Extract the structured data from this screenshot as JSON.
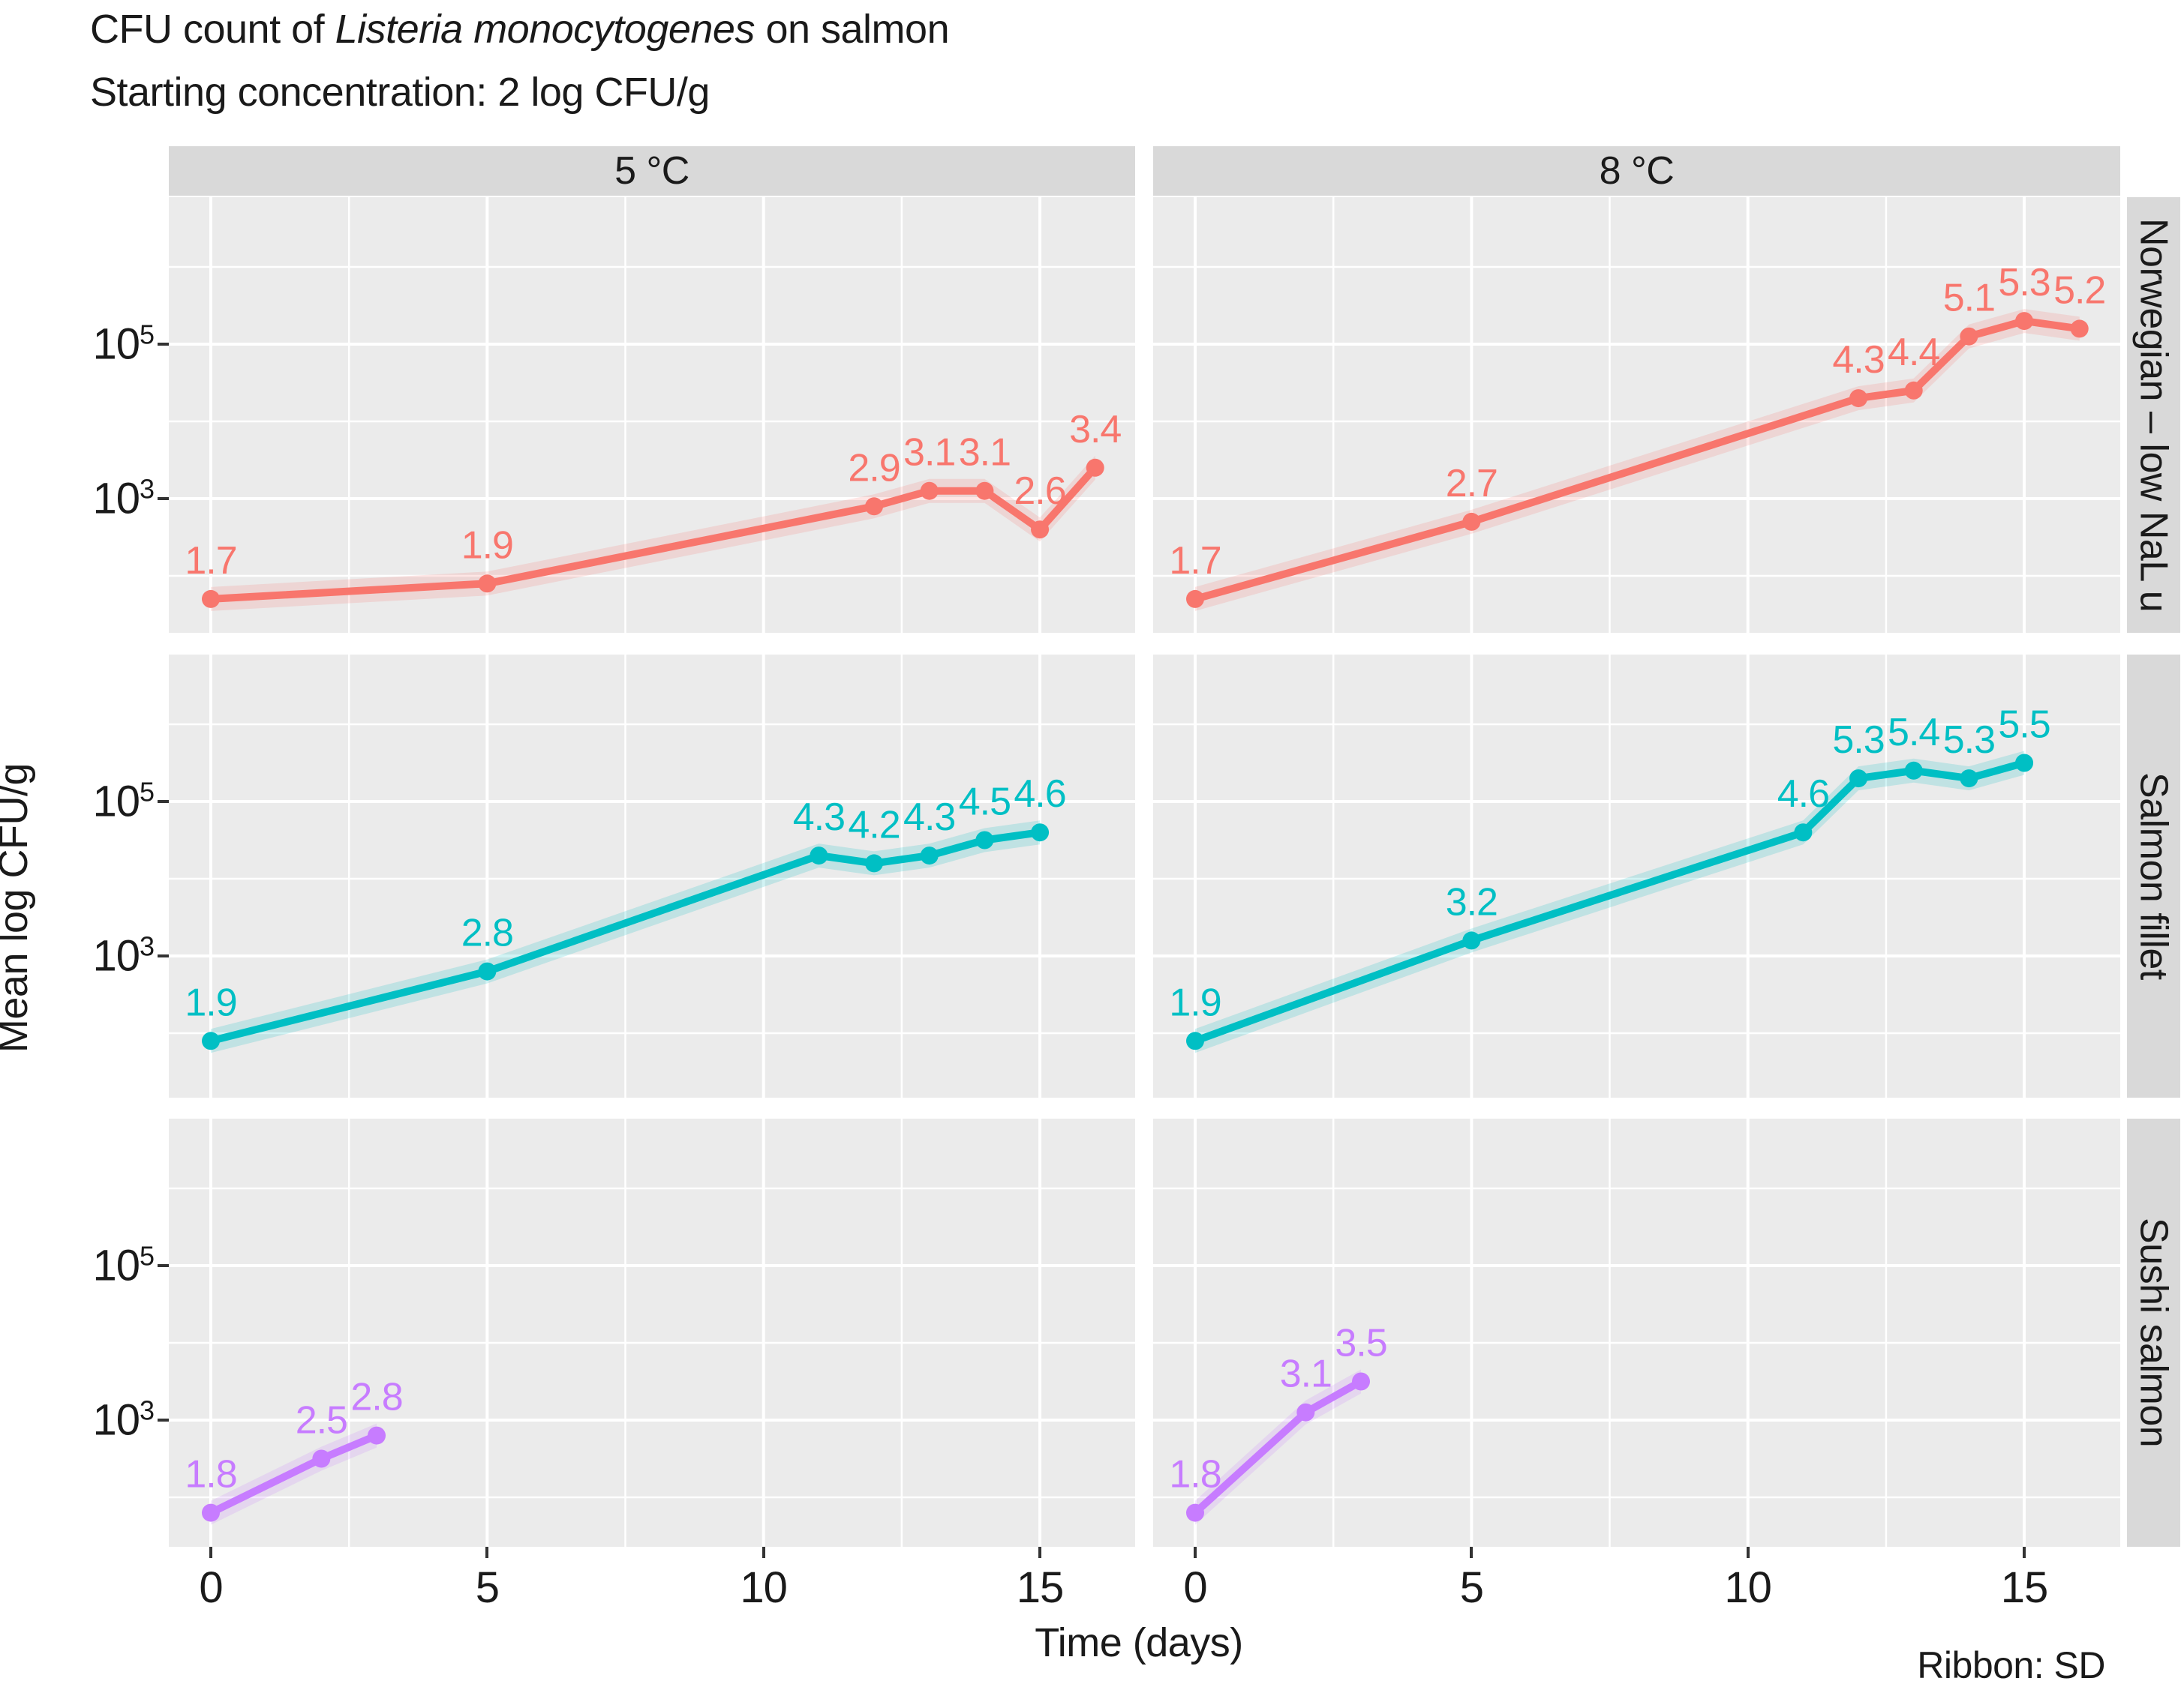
{
  "title": {
    "prefix": "CFU count of ",
    "italic": "Listeria monocytogenes",
    "suffix": " on salmon"
  },
  "subtitle": "Starting concentration: 2 log CFU/g",
  "caption": "Ribbon: SD",
  "colors": {
    "panel_bg": "#EBEBEB",
    "strip_bg": "#D9D9D9",
    "grid": "#FFFFFF",
    "text": "#1A1A1A",
    "tick": "#333333",
    "series_red": "#F8766D",
    "series_teal": "#00BFC4",
    "series_purple": "#C77CFF"
  },
  "chart_data": {
    "type": "line",
    "title": "CFU count of Listeria monocytogenes on salmon",
    "subtitle": "Starting concentration: 2 log CFU/g",
    "xlabel": "Time (days)",
    "ylabel": "Mean log CFU/g",
    "caption": "Ribbon: SD",
    "y_scale": "log10",
    "facets": {
      "cols": [
        "5 °C",
        "8 °C"
      ],
      "rows": [
        "Norwegian – low NaL u",
        "Salmon fillet",
        "Sushi salmon"
      ]
    },
    "x_ticks": [
      0,
      5,
      10,
      15
    ],
    "y_ticks_exp": [
      5,
      3
    ],
    "xlim": [
      -0.76,
      16.72
    ],
    "ylim_exp": [
      1.26,
      6.9
    ],
    "grid_minor_x": [
      2.5,
      7.5,
      12.5
    ],
    "grid_minor_y_exp": [
      2,
      4,
      6
    ],
    "series": [
      {
        "row": 0,
        "col": 0,
        "name": "Norwegian - low NaL 5C",
        "color": "#F8766D",
        "x": [
          0,
          5,
          12,
          13,
          14,
          15,
          16
        ],
        "y": [
          1.7,
          1.9,
          2.9,
          3.1,
          3.1,
          2.6,
          3.4
        ]
      },
      {
        "row": 0,
        "col": 1,
        "name": "Norwegian - low NaL 8C",
        "color": "#F8766D",
        "x": [
          0,
          5,
          12,
          13,
          14,
          15,
          16
        ],
        "y": [
          1.7,
          2.7,
          4.3,
          4.4,
          5.1,
          5.3,
          5.2
        ]
      },
      {
        "row": 1,
        "col": 0,
        "name": "Salmon fillet 5C",
        "color": "#00BFC4",
        "x": [
          0,
          5,
          11,
          12,
          13,
          14,
          15
        ],
        "y": [
          1.9,
          2.8,
          4.3,
          4.2,
          4.3,
          4.5,
          4.6
        ]
      },
      {
        "row": 1,
        "col": 1,
        "name": "Salmon fillet 8C",
        "color": "#00BFC4",
        "x": [
          0,
          5,
          11,
          12,
          13,
          14,
          15
        ],
        "y": [
          1.9,
          3.2,
          4.6,
          5.3,
          5.4,
          5.3,
          5.5
        ]
      },
      {
        "row": 2,
        "col": 0,
        "name": "Sushi salmon 5C",
        "color": "#C77CFF",
        "x": [
          0,
          2,
          3
        ],
        "y": [
          1.8,
          2.5,
          2.8
        ]
      },
      {
        "row": 2,
        "col": 1,
        "name": "Sushi salmon 8C",
        "color": "#C77CFF",
        "x": [
          0,
          2,
          3
        ],
        "y": [
          1.8,
          3.1,
          3.5
        ]
      }
    ]
  }
}
